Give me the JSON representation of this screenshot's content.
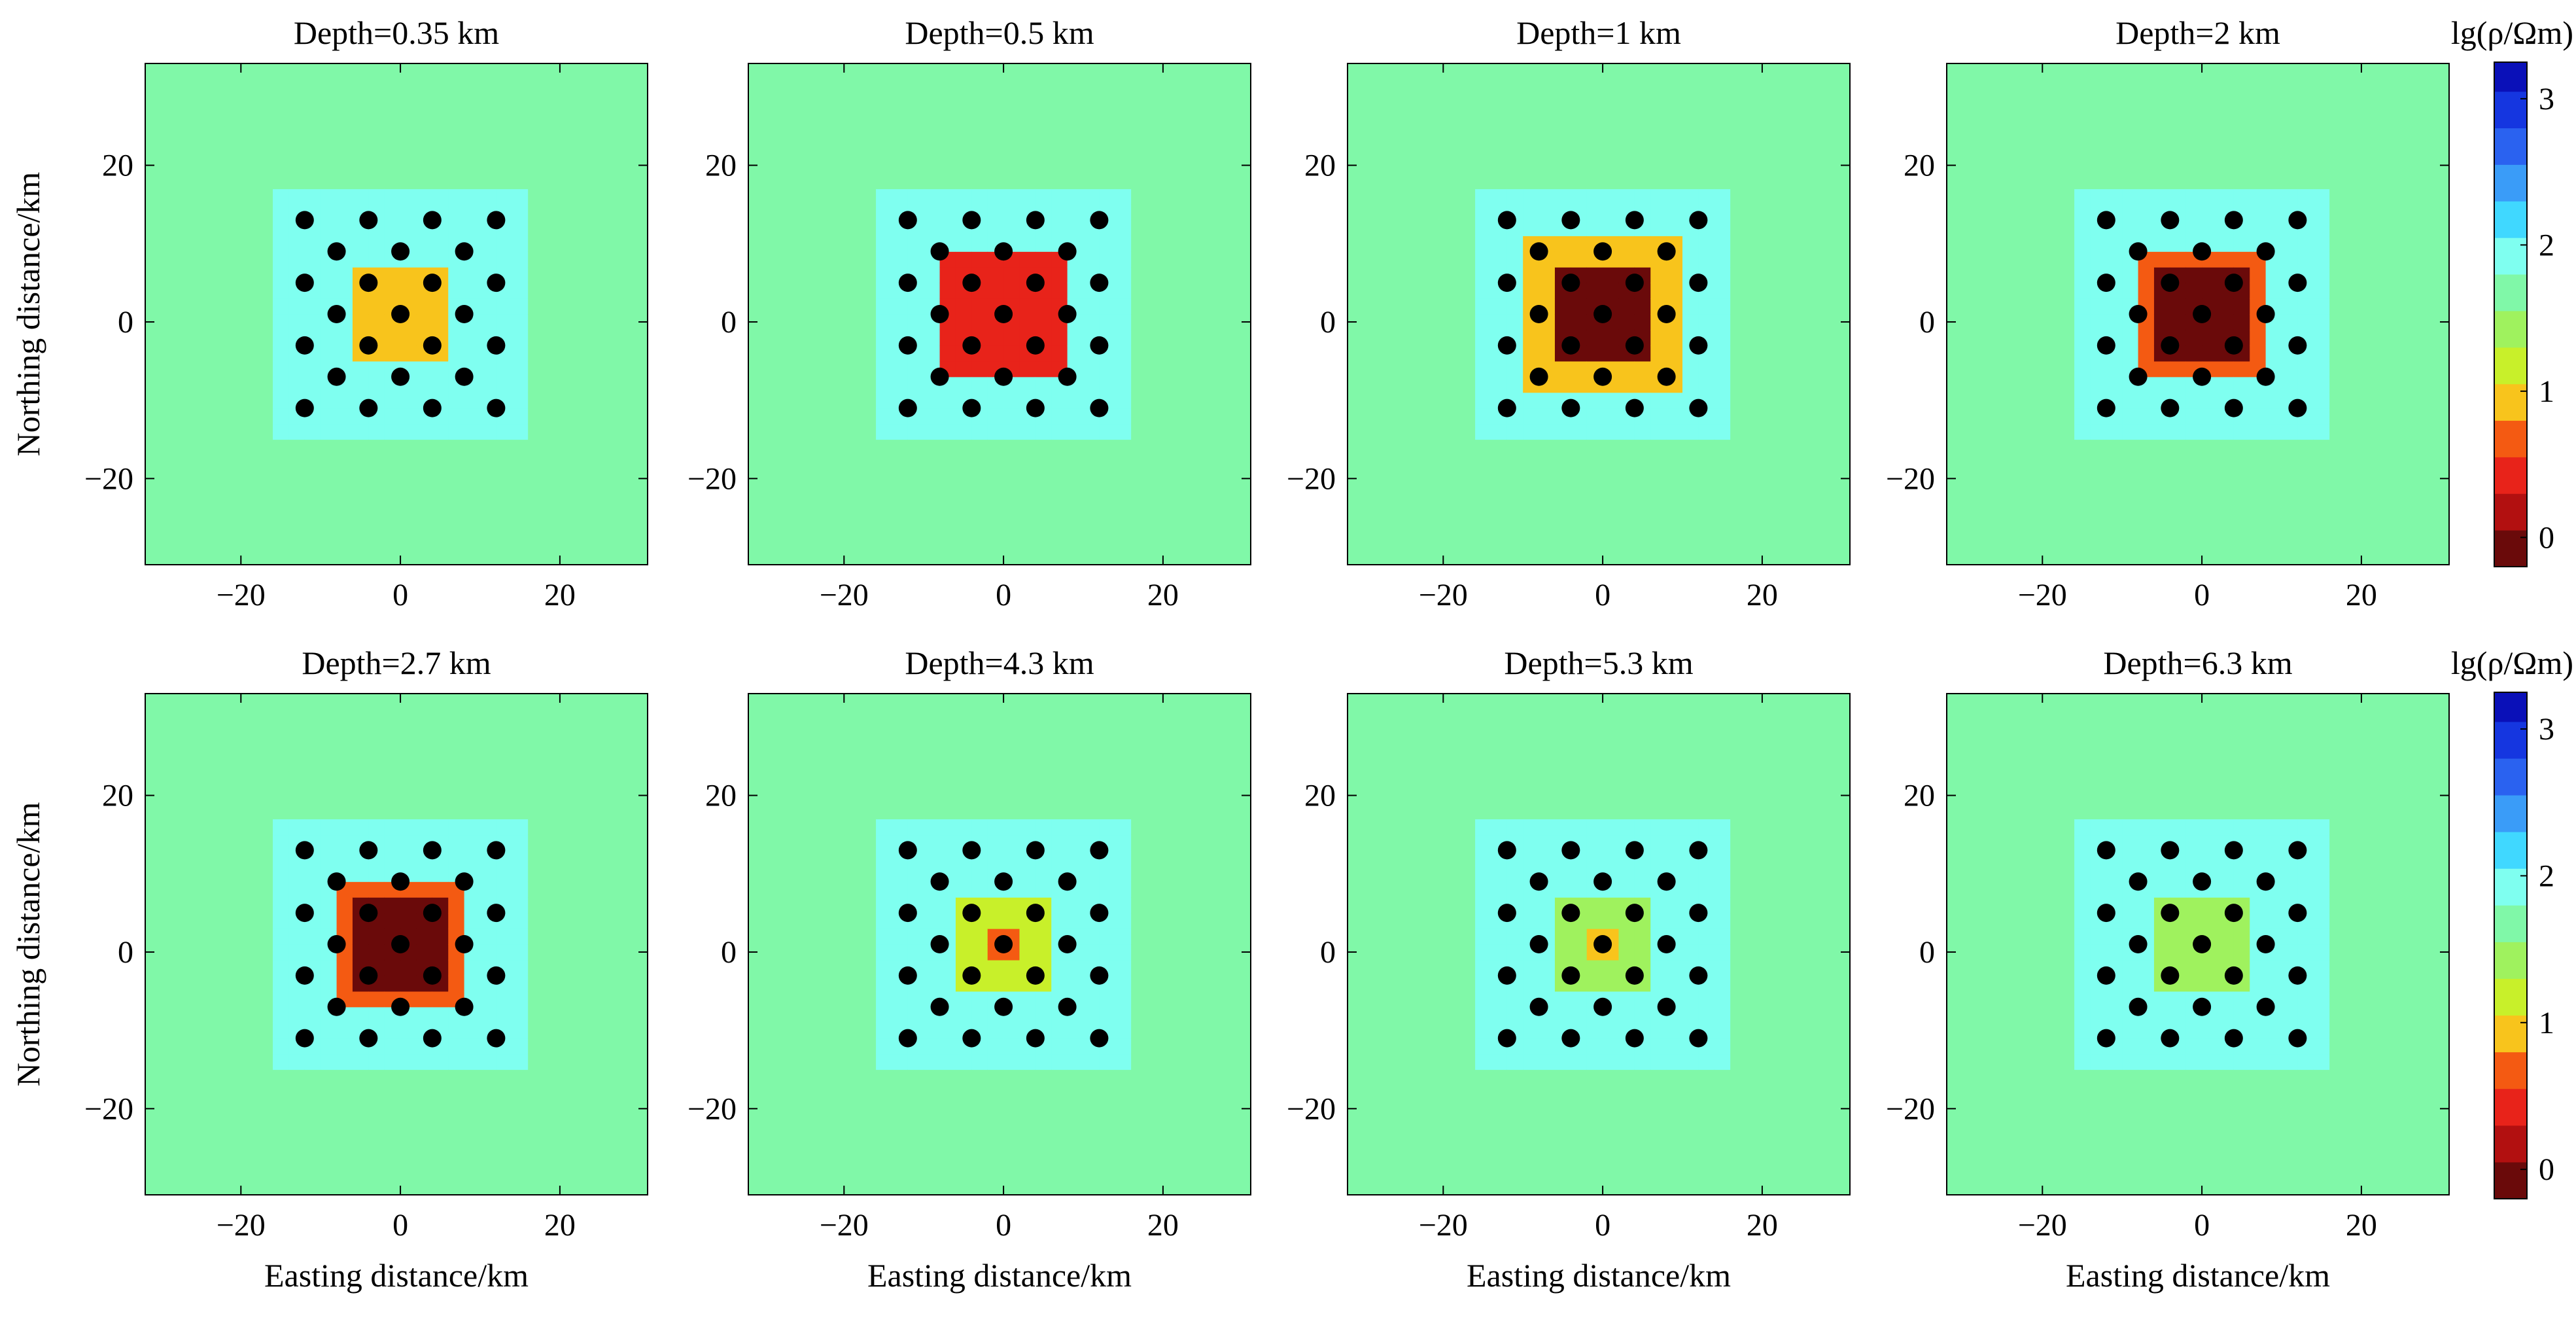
{
  "chart_data": {
    "type": "heatmap",
    "colorbar": {
      "title": "lg(ρ/Ωm)",
      "range": [
        -0.2,
        3.25
      ],
      "ticks": [
        0,
        1,
        2,
        3
      ],
      "tick_labels": [
        "0",
        "1",
        "2",
        "3"
      ],
      "bins": [
        {
          "lo": -0.2,
          "hi": 0.05,
          "color": "#6a0a0a"
        },
        {
          "lo": 0.05,
          "hi": 0.3,
          "color": "#b21010"
        },
        {
          "lo": 0.3,
          "hi": 0.55,
          "color": "#e8231a"
        },
        {
          "lo": 0.55,
          "hi": 0.8,
          "color": "#f45a12"
        },
        {
          "lo": 0.8,
          "hi": 1.05,
          "color": "#f8c41c"
        },
        {
          "lo": 1.05,
          "hi": 1.3,
          "color": "#c8f02a"
        },
        {
          "lo": 1.3,
          "hi": 1.55,
          "color": "#9ff25e"
        },
        {
          "lo": 1.55,
          "hi": 1.8,
          "color": "#80f8a8"
        },
        {
          "lo": 1.8,
          "hi": 2.05,
          "color": "#7ffff0"
        },
        {
          "lo": 2.05,
          "hi": 2.3,
          "color": "#40d8ff"
        },
        {
          "lo": 2.3,
          "hi": 2.55,
          "color": "#3a9cf8"
        },
        {
          "lo": 2.55,
          "hi": 2.8,
          "color": "#2a62f0"
        },
        {
          "lo": 2.8,
          "hi": 3.05,
          "color": "#1536e0"
        },
        {
          "lo": 3.05,
          "hi": 3.25,
          "color": "#0a10b8"
        }
      ]
    },
    "xlim": [
      -32,
      31
    ],
    "ylim": [
      -31,
      33
    ],
    "x_ticks": [
      -20,
      0,
      20
    ],
    "x_tick_labels": [
      "−20",
      "0",
      "20"
    ],
    "y_ticks": [
      -20,
      0,
      20
    ],
    "y_tick_labels": [
      "−20",
      "0",
      "20"
    ],
    "xlabel": "Easting distance/km",
    "ylabel": "Northing distance/km",
    "background_log_resistivity": 1.65,
    "cell_size_km": 2,
    "stations": [
      [
        -12,
        13
      ],
      [
        -4,
        13
      ],
      [
        4,
        13
      ],
      [
        12,
        13
      ],
      [
        -8,
        9
      ],
      [
        0,
        9
      ],
      [
        8,
        9
      ],
      [
        -12,
        5
      ],
      [
        -4,
        5
      ],
      [
        4,
        5
      ],
      [
        12,
        5
      ],
      [
        -8,
        1
      ],
      [
        0,
        1
      ],
      [
        8,
        1
      ],
      [
        -12,
        -3
      ],
      [
        -4,
        -3
      ],
      [
        4,
        -3
      ],
      [
        12,
        -3
      ],
      [
        -8,
        -7
      ],
      [
        0,
        -7
      ],
      [
        8,
        -7
      ],
      [
        -12,
        -11
      ],
      [
        -4,
        -11
      ],
      [
        4,
        -11
      ],
      [
        12,
        -11
      ]
    ],
    "panels": [
      {
        "title": "Depth=0.35 km",
        "anomaly": {
          "halfwidth": 6,
          "center_value": 1.0,
          "ring_value": 1.0
        }
      },
      {
        "title": "Depth=0.5 km",
        "anomaly": {
          "halfwidth": 8,
          "center_value": 0.35,
          "ring_value": 0.5
        }
      },
      {
        "title": "Depth=1 km",
        "anomaly": {
          "halfwidth": 9,
          "center_value": -0.05,
          "ring_value": 0.8
        }
      },
      {
        "title": "Depth=2 km",
        "anomaly": {
          "halfwidth": 8,
          "center_value": -0.05,
          "ring_value": 0.6
        }
      },
      {
        "title": "Depth=2.7 km",
        "anomaly": {
          "halfwidth": 8,
          "center_value": -0.05,
          "ring_value": 0.6
        }
      },
      {
        "title": "Depth=4.3 km",
        "anomaly": {
          "halfwidth": 5,
          "center_value": 0.7,
          "ring_value": 1.1
        }
      },
      {
        "title": "Depth=5.3 km",
        "anomaly": {
          "halfwidth": 5,
          "center_value": 1.0,
          "ring_value": 1.3
        }
      },
      {
        "title": "Depth=6.3 km",
        "anomaly": {
          "halfwidth": 5,
          "center_value": 1.4,
          "ring_value": 1.5
        }
      }
    ]
  }
}
